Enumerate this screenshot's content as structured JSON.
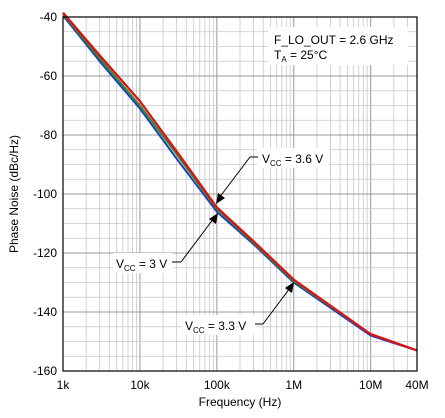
{
  "chart_data": {
    "type": "line",
    "title": "",
    "xlabel": "Frequency (Hz)",
    "ylabel": "Phase Noise (dBc/Hz)",
    "x_scale": "log",
    "xlim": [
      1000,
      40000000
    ],
    "ylim": [
      -160,
      -40
    ],
    "x_ticks": [
      {
        "value": 1000,
        "label": "1k"
      },
      {
        "value": 10000,
        "label": "10k"
      },
      {
        "value": 100000,
        "label": "100k"
      },
      {
        "value": 1000000,
        "label": "1M"
      },
      {
        "value": 10000000,
        "label": "10M"
      },
      {
        "value": 40000000,
        "label": "40M"
      }
    ],
    "y_ticks": [
      -40,
      -60,
      -80,
      -100,
      -120,
      -140,
      -160
    ],
    "grid": true,
    "series": [
      {
        "color": "#1f3fbf",
        "x": [
          1000,
          3000,
          10000,
          30000,
          100000,
          300000,
          1000000,
          10000000,
          40000000
        ],
        "y": [
          -39.5,
          -55,
          -71,
          -88,
          -106,
          -117,
          -130,
          -148,
          -153
        ]
      },
      {
        "color": "#2e8b2e",
        "x": [
          1000,
          3000,
          10000,
          30000,
          100000,
          300000,
          1000000,
          10000000,
          40000000
        ],
        "y": [
          -39,
          -54,
          -70,
          -86.5,
          -105,
          -116.5,
          -129.5,
          -147.5,
          -153
        ]
      },
      {
        "color": "#e01010",
        "x": [
          1000,
          3000,
          10000,
          30000,
          100000,
          300000,
          1000000,
          10000000,
          40000000
        ],
        "y": [
          -38.5,
          -53,
          -68.5,
          -85.5,
          -104.5,
          -116,
          -129,
          -147.5,
          -153
        ]
      }
    ],
    "annotations": {
      "condition_line1": "F_LO_OUT = 2.6 GHz",
      "condition_line2_pre": "T",
      "condition_line2_sub": "A",
      "condition_line2_post": " = 25°C",
      "vcc_label_pre": "V",
      "vcc_label_sub": "CC",
      "vcc_36": " = 3.6 V",
      "vcc_3": " = 3 V",
      "vcc_33": " = 3.3 V"
    }
  }
}
